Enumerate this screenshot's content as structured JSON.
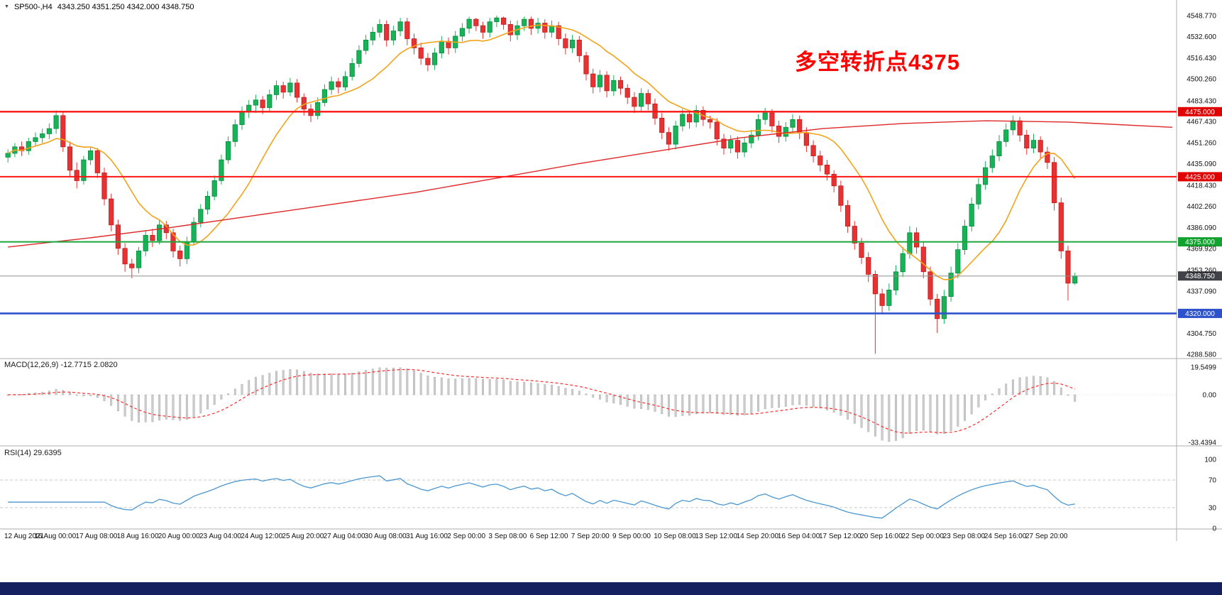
{
  "window": {
    "symbol_marker": "▼",
    "symbol": "SP500-,H4",
    "ohlc_line": "4343.250 4351.250 4342.000 4348.750"
  },
  "annotation": {
    "text": "多空转折点4375",
    "color": "#ff0000"
  },
  "price_axis": {
    "labels": [
      "4548.770",
      "4532.600",
      "4516.430",
      "4500.260",
      "4483.430",
      "4467.430",
      "4451.260",
      "4435.090",
      "4418.430",
      "4402.260",
      "4386.090",
      "4369.920",
      "4353.260",
      "4337.090",
      "4304.750",
      "4288.580"
    ]
  },
  "hlines": [
    {
      "price": 4475.0,
      "tag": "4475.000",
      "color_key": "hline_red",
      "tag_key": "red_tag",
      "w": 2.4
    },
    {
      "price": 4425.0,
      "tag": "4425.000",
      "color_key": "hline_red",
      "tag_key": "red_tag",
      "w": 2.0
    },
    {
      "price": 4375.0,
      "tag": "4375.000",
      "color_key": "hline_green",
      "tag_key": "green_tag",
      "w": 2.0
    },
    {
      "price": 4320.0,
      "tag": "4320.000",
      "color_key": "hline_blue",
      "tag_key": "blue_tag",
      "w": 2.6
    }
  ],
  "current_price": {
    "value": 4348.75,
    "tag": "4348.750"
  },
  "panels": {
    "macd": {
      "label": "MACD(12,26,9) -12.7715 2.0820",
      "axis_labels": [
        "19.5499",
        "0.00",
        "-33.4394"
      ],
      "range": [
        -33.4394,
        19.5499
      ]
    },
    "rsi": {
      "label": "RSI(14) 29.6395",
      "axis_labels": [
        "100",
        "70",
        "30",
        "0"
      ],
      "levels": [
        70,
        30
      ],
      "range": [
        0,
        100
      ]
    }
  },
  "chart_data": {
    "type": "candlestick",
    "title": "SP500-,H4",
    "symbol": "SP500-",
    "timeframe": "H4",
    "ohlc_display": {
      "open": 4343.25,
      "high": 4351.25,
      "low": 4342.0,
      "close": 4348.75
    },
    "price_range": [
      4286,
      4553
    ],
    "x_labels": [
      "12 Aug 2021",
      "16 Aug 00:00",
      "17 Aug 08:00",
      "18 Aug 16:00",
      "20 Aug 00:00",
      "23 Aug 04:00",
      "24 Aug 12:00",
      "25 Aug 20:00",
      "27 Aug 04:00",
      "30 Aug 08:00",
      "31 Aug 16:00",
      "2 Sep 00:00",
      "3 Sep 08:00",
      "6 Sep 12:00",
      "7 Sep 20:00",
      "9 Sep 00:00",
      "10 Sep 08:00",
      "13 Sep 12:00",
      "14 Sep 20:00",
      "16 Sep 04:00",
      "17 Sep 12:00",
      "20 Sep 16:00",
      "22 Sep 00:00",
      "23 Sep 08:00",
      "24 Sep 16:00",
      "27 Sep 20:00"
    ],
    "candles": [
      [
        4440,
        4446,
        4436,
        4443
      ],
      [
        4443,
        4451,
        4440,
        4448
      ],
      [
        4448,
        4452,
        4441,
        4445
      ],
      [
        4445,
        4455,
        4442,
        4452
      ],
      [
        4452,
        4459,
        4449,
        4455
      ],
      [
        4455,
        4462,
        4451,
        4458
      ],
      [
        4458,
        4466,
        4454,
        4462
      ],
      [
        4462,
        4476,
        4458,
        4472
      ],
      [
        4472,
        4475,
        4444,
        4448
      ],
      [
        4448,
        4452,
        4425,
        4430
      ],
      [
        4430,
        4436,
        4416,
        4422
      ],
      [
        4422,
        4441,
        4419,
        4438
      ],
      [
        4438,
        4448,
        4434,
        4445
      ],
      [
        4445,
        4447,
        4424,
        4428
      ],
      [
        4428,
        4432,
        4403,
        4408
      ],
      [
        4408,
        4412,
        4383,
        4388
      ],
      [
        4388,
        4392,
        4365,
        4370
      ],
      [
        4370,
        4374,
        4352,
        4358
      ],
      [
        4358,
        4362,
        4347,
        4355
      ],
      [
        4355,
        4371,
        4351,
        4368
      ],
      [
        4368,
        4384,
        4364,
        4380
      ],
      [
        4380,
        4385,
        4371,
        4376
      ],
      [
        4376,
        4392,
        4373,
        4388
      ],
      [
        4388,
        4391,
        4377,
        4382
      ],
      [
        4382,
        4385,
        4363,
        4368
      ],
      [
        4368,
        4372,
        4356,
        4362
      ],
      [
        4362,
        4379,
        4358,
        4375
      ],
      [
        4375,
        4394,
        4372,
        4390
      ],
      [
        4390,
        4404,
        4386,
        4400
      ],
      [
        4400,
        4414,
        4396,
        4410
      ],
      [
        4410,
        4426,
        4407,
        4422
      ],
      [
        4422,
        4442,
        4419,
        4438
      ],
      [
        4438,
        4456,
        4435,
        4452
      ],
      [
        4452,
        4469,
        4448,
        4465
      ],
      [
        4465,
        4479,
        4461,
        4475
      ],
      [
        4475,
        4484,
        4470,
        4480
      ],
      [
        4480,
        4488,
        4474,
        4484
      ],
      [
        4484,
        4487,
        4473,
        4478
      ],
      [
        4478,
        4492,
        4475,
        4488
      ],
      [
        4488,
        4499,
        4484,
        4495
      ],
      [
        4495,
        4498,
        4485,
        4490
      ],
      [
        4490,
        4501,
        4487,
        4497
      ],
      [
        4497,
        4500,
        4482,
        4486
      ],
      [
        4486,
        4489,
        4472,
        4477
      ],
      [
        4477,
        4481,
        4467,
        4472
      ],
      [
        4472,
        4486,
        4469,
        4482
      ],
      [
        4482,
        4496,
        4479,
        4492
      ],
      [
        4492,
        4502,
        4488,
        4498
      ],
      [
        4498,
        4501,
        4489,
        4494
      ],
      [
        4494,
        4506,
        4491,
        4502
      ],
      [
        4502,
        4516,
        4499,
        4512
      ],
      [
        4512,
        4526,
        4509,
        4522
      ],
      [
        4522,
        4534,
        4519,
        4530
      ],
      [
        4530,
        4540,
        4526,
        4536
      ],
      [
        4536,
        4546,
        4532,
        4542
      ],
      [
        4542,
        4545,
        4525,
        4530
      ],
      [
        4530,
        4541,
        4526,
        4537
      ],
      [
        4537,
        4547,
        4533,
        4544
      ],
      [
        4544,
        4547,
        4526,
        4531
      ],
      [
        4531,
        4535,
        4519,
        4524
      ],
      [
        4524,
        4528,
        4511,
        4516
      ],
      [
        4516,
        4520,
        4506,
        4511
      ],
      [
        4511,
        4524,
        4507,
        4520
      ],
      [
        4520,
        4533,
        4516,
        4529
      ],
      [
        4529,
        4532,
        4519,
        4524
      ],
      [
        4524,
        4537,
        4520,
        4533
      ],
      [
        4533,
        4543,
        4529,
        4539
      ],
      [
        4539,
        4548,
        4535,
        4546
      ],
      [
        4546,
        4547,
        4537,
        4541
      ],
      [
        4541,
        4544,
        4531,
        4536
      ],
      [
        4536,
        4547,
        4532,
        4544
      ],
      [
        4544,
        4548.8,
        4540,
        4547
      ],
      [
        4547,
        4548,
        4538,
        4542
      ],
      [
        4542,
        4545,
        4529,
        4534
      ],
      [
        4534,
        4545,
        4530,
        4541
      ],
      [
        4541,
        4548,
        4537,
        4546
      ],
      [
        4546,
        4548,
        4534,
        4539
      ],
      [
        4539,
        4547,
        4535,
        4543
      ],
      [
        4543,
        4546,
        4531,
        4536
      ],
      [
        4536,
        4545,
        4532,
        4541
      ],
      [
        4541,
        4544,
        4526,
        4531
      ],
      [
        4531,
        4535,
        4519,
        4524
      ],
      [
        4524,
        4534,
        4520,
        4530
      ],
      [
        4530,
        4533,
        4513,
        4518
      ],
      [
        4518,
        4521,
        4499,
        4504
      ],
      [
        4504,
        4508,
        4489,
        4494
      ],
      [
        4494,
        4507,
        4490,
        4503
      ],
      [
        4503,
        4506,
        4486,
        4491
      ],
      [
        4491,
        4503,
        4487,
        4499
      ],
      [
        4499,
        4502,
        4488,
        4493
      ],
      [
        4493,
        4496,
        4481,
        4486
      ],
      [
        4486,
        4490,
        4474,
        4479
      ],
      [
        4479,
        4493,
        4475,
        4489
      ],
      [
        4489,
        4492,
        4476,
        4481
      ],
      [
        4481,
        4485,
        4465,
        4470
      ],
      [
        4470,
        4474,
        4454,
        4459
      ],
      [
        4459,
        4463,
        4445,
        4450
      ],
      [
        4450,
        4468,
        4446,
        4464
      ],
      [
        4464,
        4477,
        4460,
        4473
      ],
      [
        4473,
        4476,
        4462,
        4467
      ],
      [
        4467,
        4480,
        4463,
        4476
      ],
      [
        4476,
        4479,
        4464,
        4469
      ],
      [
        4469,
        4472,
        4462,
        4467
      ],
      [
        4467,
        4470,
        4449,
        4454
      ],
      [
        4454,
        4458,
        4442,
        4447
      ],
      [
        4447,
        4457,
        4443,
        4453
      ],
      [
        4453,
        4456,
        4439,
        4444
      ],
      [
        4444,
        4455,
        4440,
        4451
      ],
      [
        4451,
        4461,
        4447,
        4457
      ],
      [
        4457,
        4473,
        4453,
        4469
      ],
      [
        4469,
        4478,
        4465,
        4474
      ],
      [
        4474,
        4477,
        4459,
        4464
      ],
      [
        4464,
        4468,
        4451,
        4456
      ],
      [
        4456,
        4467,
        4452,
        4463
      ],
      [
        4463,
        4473,
        4459,
        4469
      ],
      [
        4469,
        4472,
        4454,
        4459
      ],
      [
        4459,
        4463,
        4444,
        4449
      ],
      [
        4449,
        4453,
        4436,
        4441
      ],
      [
        4441,
        4445,
        4429,
        4434
      ],
      [
        4434,
        4438,
        4422,
        4427
      ],
      [
        4427,
        4430,
        4413,
        4418
      ],
      [
        4418,
        4422,
        4398,
        4403
      ],
      [
        4403,
        4407,
        4382,
        4387
      ],
      [
        4387,
        4391,
        4369,
        4374
      ],
      [
        4374,
        4378,
        4358,
        4363
      ],
      [
        4363,
        4367,
        4344,
        4350
      ],
      [
        4350,
        4353,
        4289,
        4335
      ],
      [
        4335,
        4339,
        4320,
        4326
      ],
      [
        4326,
        4343,
        4322,
        4338
      ],
      [
        4338,
        4357,
        4334,
        4352
      ],
      [
        4352,
        4371,
        4348,
        4366
      ],
      [
        4366,
        4387,
        4362,
        4382
      ],
      [
        4382,
        4386,
        4366,
        4371
      ],
      [
        4371,
        4375,
        4347,
        4352
      ],
      [
        4352,
        4356,
        4326,
        4331
      ],
      [
        4331,
        4335,
        4305,
        4316
      ],
      [
        4316,
        4338,
        4312,
        4333
      ],
      [
        4333,
        4356,
        4329,
        4351
      ],
      [
        4351,
        4374,
        4347,
        4369
      ],
      [
        4369,
        4392,
        4365,
        4387
      ],
      [
        4387,
        4409,
        4383,
        4404
      ],
      [
        4404,
        4424,
        4400,
        4419
      ],
      [
        4419,
        4437,
        4415,
        4432
      ],
      [
        4432,
        4446,
        4428,
        4441
      ],
      [
        4441,
        4457,
        4437,
        4452
      ],
      [
        4452,
        4466,
        4448,
        4461
      ],
      [
        4461,
        4472,
        4457,
        4468
      ],
      [
        4468,
        4471,
        4452,
        4457
      ],
      [
        4457,
        4461,
        4442,
        4447
      ],
      [
        4447,
        4458,
        4443,
        4453
      ],
      [
        4453,
        4456,
        4439,
        4444
      ],
      [
        4444,
        4448,
        4431,
        4436
      ],
      [
        4436,
        4440,
        4399,
        4405
      ],
      [
        4405,
        4409,
        4362,
        4368
      ],
      [
        4368,
        4372,
        4330,
        4343.25
      ],
      [
        4343.25,
        4351.25,
        4342,
        4348.75
      ]
    ],
    "overlays": {
      "ma_fast": {
        "type": "sma",
        "period": 12
      },
      "ma_slow_anchor_points": [
        [
          0,
          4371
        ],
        [
          0.07,
          4378
        ],
        [
          0.14,
          4386
        ],
        [
          0.21,
          4395
        ],
        [
          0.28,
          4404
        ],
        [
          0.35,
          4413
        ],
        [
          0.42,
          4424
        ],
        [
          0.49,
          4435
        ],
        [
          0.56,
          4445
        ],
        [
          0.63,
          4455
        ],
        [
          0.7,
          4462
        ],
        [
          0.77,
          4466
        ],
        [
          0.84,
          4468
        ],
        [
          0.91,
          4467
        ],
        [
          1,
          4463
        ]
      ]
    },
    "indicators": {
      "macd": {
        "params": [
          12,
          26,
          9
        ],
        "current_main": -12.7715,
        "current_signal": 2.082
      },
      "rsi": {
        "period": 14,
        "current": 29.6395
      }
    }
  },
  "colors": {
    "up": "#18b257",
    "up_stroke": "#0c8c41",
    "down": "#e63232",
    "down_stroke": "#c31d1d",
    "ma_fast": "#f2a31b",
    "ma_slow": "#e02727",
    "hline_red": "#ff1414",
    "hline_green": "#1ca53a",
    "hline_blue": "#2d52cc",
    "price_line": "#8e8e8e",
    "price_tag_bg": "#3f4246",
    "red_tag": "#e00000",
    "green_tag": "#12a22f",
    "blue_tag": "#2d52cc",
    "macd_bar": "#cfcfcf",
    "macd_bar_stroke": "#a6a6a6",
    "macd_signal": "#ff2d2d",
    "rsi_line": "#4b97d2",
    "grid_dash": "#c9c9c9",
    "divider": "#adadad",
    "axis_text": "#111111",
    "taskbar": "#14205f"
  }
}
